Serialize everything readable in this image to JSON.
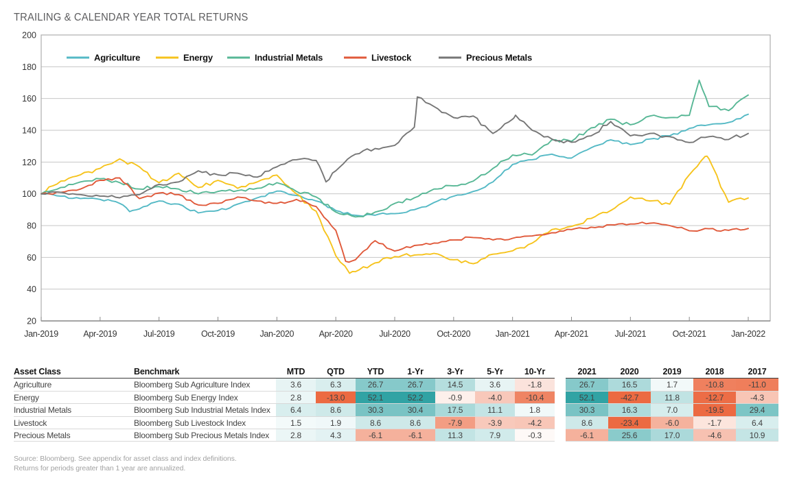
{
  "title": "TRAILING & CALENDAR YEAR TOTAL RETURNS",
  "chart_data": {
    "type": "line",
    "title": "",
    "xlabel": "",
    "ylabel": "",
    "ylim": [
      20,
      200
    ],
    "y_ticks": [
      20,
      40,
      60,
      80,
      100,
      120,
      140,
      160,
      180,
      200
    ],
    "grid": true,
    "legend_position": "top-inside",
    "x_tick_labels": [
      "Jan-2019",
      "Apr-2019",
      "Jul-2019",
      "Oct-2019",
      "Jan-2020",
      "Apr-2020",
      "Jul-2020",
      "Oct-2020",
      "Jan-2021",
      "Apr-2021",
      "Jul-2021",
      "Oct-2021",
      "Jan-2022"
    ],
    "sampling": "monthly index values, Jan-2019 = 100, estimated from chart",
    "series": [
      {
        "key": "agriculture",
        "name": "Agriculture",
        "color": "#54b9c5",
        "values": [
          100,
          98.5,
          97,
          96.5,
          94,
          90.5,
          95.5,
          93.5,
          88,
          89.5,
          93.5,
          97.5,
          101.7,
          99,
          95.5,
          89.5,
          86.5,
          86.5,
          87.5,
          90,
          94.5,
          98.5,
          101.5,
          107.5,
          118.5,
          121.5,
          125,
          122.5,
          129,
          134,
          131,
          134.5,
          136.5,
          141.2,
          143.5,
          144.9,
          150.1
        ]
      },
      {
        "key": "energy",
        "name": "Energy",
        "color": "#f6c31c",
        "values": [
          100,
          108,
          112,
          116,
          122,
          117,
          107,
          113,
          104,
          108.5,
          103.5,
          107.5,
          111.8,
          100,
          89,
          61,
          51,
          56.5,
          60.5,
          61.5,
          62.5,
          58.5,
          56,
          62,
          64.1,
          69,
          77.5,
          79.5,
          84.5,
          89.5,
          98,
          95.5,
          93.5,
          112,
          122,
          94.7,
          97.4
        ]
      },
      {
        "key": "industrial_metals",
        "name": "Industrial Metals",
        "color": "#57b795",
        "values": [
          100,
          104,
          107.5,
          109.5,
          107,
          103,
          104.5,
          103,
          100,
          101.5,
          102,
          103.5,
          107,
          101.5,
          98,
          88.5,
          85.5,
          88.5,
          94,
          97.5,
          103,
          105,
          108,
          116,
          124.4,
          124.5,
          134,
          133,
          141.5,
          147,
          143.5,
          149,
          148,
          149.4,
          155,
          152.4,
          162.2
        ]
      },
      {
        "key": "livestock",
        "name": "Livestock",
        "color": "#e0593a",
        "values": [
          100,
          101,
          103,
          108.5,
          110,
          97,
          100.5,
          99.5,
          93,
          94,
          98,
          95.5,
          94,
          96.5,
          92,
          77,
          58.5,
          70.5,
          64,
          67.5,
          69,
          71,
          72.5,
          71,
          72,
          73.5,
          75.5,
          77.5,
          79,
          80.5,
          81,
          81.5,
          80,
          76.7,
          78,
          77,
          78.2
        ]
      },
      {
        "key": "precious_metals",
        "name": "Precious Metals",
        "color": "#767676",
        "values": [
          100,
          101,
          99.5,
          98.5,
          97.5,
          99.5,
          106,
          107.5,
          114.5,
          112,
          113,
          110.5,
          117,
          121.5,
          121,
          114.5,
          125,
          128.5,
          130.5,
          142,
          155,
          148,
          149,
          138,
          147,
          140,
          134.5,
          132.5,
          136.5,
          145.5,
          136.5,
          138,
          136,
          132.3,
          136,
          134.2,
          138
        ]
      }
    ],
    "notable_extremes": [
      {
        "series": "agriculture",
        "t": 4.5,
        "v": 88.8
      },
      {
        "series": "energy",
        "t": 15.7,
        "v": 50.0
      },
      {
        "series": "energy",
        "t": 33.8,
        "v": 123.5
      },
      {
        "series": "industrial_metals",
        "t": 33.5,
        "v": 171.5
      },
      {
        "series": "livestock",
        "t": 15.5,
        "v": 57.5
      },
      {
        "series": "precious_metals",
        "t": 14.5,
        "v": 107.5
      },
      {
        "series": "precious_metals",
        "t": 19.15,
        "v": 161.0
      },
      {
        "series": "precious_metals",
        "t": 24.15,
        "v": 149.5
      }
    ]
  },
  "table": {
    "columns_left": [
      "Asset Class",
      "Benchmark",
      "MTD",
      "QTD",
      "YTD",
      "1-Yr",
      "3-Yr",
      "5-Yr",
      "10-Yr"
    ],
    "columns_years": [
      "2021",
      "2020",
      "2019",
      "2018",
      "2017"
    ],
    "rows": [
      {
        "asset_class": "Agriculture",
        "benchmark": "Bloomberg Sub Agriculture Index",
        "returns": [
          "3.6",
          "6.3",
          "26.7",
          "26.7",
          "14.5",
          "3.6",
          "-1.8"
        ],
        "calendar": [
          "26.7",
          "16.5",
          "1.7",
          "-10.8",
          "-11.0"
        ]
      },
      {
        "asset_class": "Energy",
        "benchmark": "Bloomberg Sub Energy Index",
        "returns": [
          "2.8",
          "-13.0",
          "52.1",
          "52.2",
          "-0.9",
          "-4.0",
          "-10.4"
        ],
        "calendar": [
          "52.1",
          "-42.7",
          "11.8",
          "-12.7",
          "-4.3"
        ]
      },
      {
        "asset_class": "Industrial Metals",
        "benchmark": "Bloomberg Sub Industrial Metals Index",
        "returns": [
          "6.4",
          "8.6",
          "30.3",
          "30.4",
          "17.5",
          "11.1",
          "1.8"
        ],
        "calendar": [
          "30.3",
          "16.3",
          "7.0",
          "-19.5",
          "29.4"
        ]
      },
      {
        "asset_class": "Livestock",
        "benchmark": "Bloomberg Sub Livestock Index",
        "returns": [
          "1.5",
          "1.9",
          "8.6",
          "8.6",
          "-7.9",
          "-3.9",
          "-4.2"
        ],
        "calendar": [
          "8.6",
          "-23.4",
          "-6.0",
          "-1.7",
          "6.4"
        ]
      },
      {
        "asset_class": "Precious Metals",
        "benchmark": "Bloomberg Sub Precious Metals Index",
        "returns": [
          "2.8",
          "4.3",
          "-6.1",
          "-6.1",
          "11.3",
          "7.9",
          "-0.3"
        ],
        "calendar": [
          "-6.1",
          "25.6",
          "17.0",
          "-4.6",
          "10.9"
        ]
      }
    ],
    "heat_scale": {
      "positive_color": "#31a3a4",
      "negative_color": "#ec6a42",
      "positive_saturation_at": 52,
      "negative_saturation_at": 13
    }
  },
  "footnotes": [
    "Source: Bloomberg. See appendix for asset class and index definitions.",
    "Returns for periods greater than 1 year are annualized."
  ]
}
